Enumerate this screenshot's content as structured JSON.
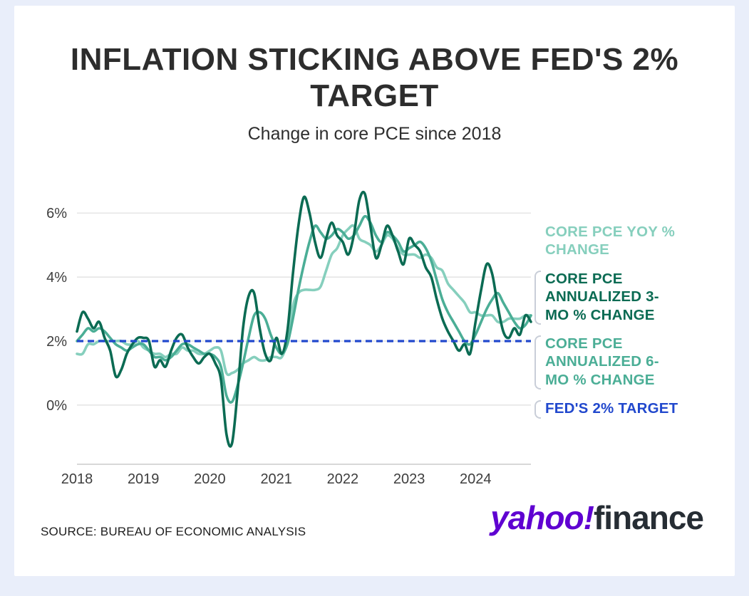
{
  "header": {
    "title": "INFLATION STICKING ABOVE FED'S 2% TARGET",
    "subtitle": "Change in core PCE since 2018"
  },
  "chart_data": {
    "type": "line",
    "frequency": "monthly",
    "x_tick_labels": [
      "2018",
      "2019",
      "2020",
      "2021",
      "2022",
      "2023",
      "2024"
    ],
    "y_ticks": [
      0,
      2,
      4,
      6
    ],
    "y_tick_labels": [
      "0%",
      "2%",
      "4%",
      "6%"
    ],
    "ylim": [
      -1.85,
      7.05
    ],
    "grid": "horizontal",
    "legend_position": "right",
    "target_line": {
      "label": "FED'S 2% TARGET",
      "value": 2,
      "color": "#2148cd",
      "style": "dashed"
    },
    "series": [
      {
        "name": "CORE PCE YOY % CHANGE",
        "color": "#86cfbd",
        "values": [
          1.6,
          1.6,
          1.9,
          1.9,
          2.0,
          2.0,
          2.0,
          2.0,
          2.0,
          1.9,
          1.9,
          2.0,
          1.8,
          1.7,
          1.6,
          1.6,
          1.5,
          1.6,
          1.6,
          1.8,
          1.7,
          1.7,
          1.6,
          1.6,
          1.7,
          1.8,
          1.7,
          1.0,
          1.0,
          1.1,
          1.3,
          1.4,
          1.5,
          1.4,
          1.4,
          1.5,
          1.5,
          1.5,
          2.0,
          3.1,
          3.5,
          3.6,
          3.6,
          3.6,
          3.7,
          4.2,
          4.7,
          4.9,
          5.3,
          5.5,
          5.6,
          5.2,
          5.1,
          5.0,
          4.8,
          5.0,
          5.3,
          5.2,
          4.9,
          4.7,
          4.7,
          4.7,
          4.6,
          4.7,
          4.6,
          4.3,
          4.2,
          3.8,
          3.6,
          3.4,
          3.2,
          2.9,
          2.9,
          2.8,
          2.8,
          2.8,
          2.6,
          2.6,
          2.7,
          2.7,
          2.7,
          2.8,
          2.8
        ]
      },
      {
        "name": "CORE PCE ANNUALIZED 6-MO % CHANGE",
        "color": "#4bae96",
        "values": [
          2.0,
          2.2,
          2.4,
          2.3,
          2.4,
          2.3,
          2.1,
          1.9,
          1.8,
          1.7,
          1.8,
          1.9,
          1.9,
          1.7,
          1.5,
          1.5,
          1.4,
          1.5,
          1.7,
          1.9,
          1.9,
          1.8,
          1.7,
          1.6,
          1.6,
          1.5,
          1.2,
          0.3,
          0.1,
          0.6,
          1.3,
          2.1,
          2.8,
          2.9,
          2.7,
          2.2,
          1.8,
          1.6,
          1.9,
          2.7,
          3.6,
          4.4,
          5.1,
          5.6,
          5.4,
          5.2,
          5.3,
          5.5,
          5.4,
          5.2,
          5.3,
          5.6,
          5.9,
          5.7,
          5.3,
          5.1,
          5.4,
          5.3,
          5.1,
          4.8,
          4.9,
          5.0,
          5.1,
          4.9,
          4.5,
          3.9,
          3.3,
          2.9,
          2.6,
          2.3,
          2.0,
          1.9,
          2.2,
          2.6,
          3.0,
          3.3,
          3.5,
          3.2,
          2.9,
          2.6,
          2.4,
          2.5,
          2.8
        ]
      },
      {
        "name": "CORE PCE ANNUALIZED 3-MO % CHANGE",
        "color": "#0b6b53",
        "values": [
          2.3,
          2.9,
          2.7,
          2.4,
          2.6,
          2.1,
          1.7,
          0.9,
          1.1,
          1.6,
          1.9,
          2.1,
          2.1,
          2.0,
          1.2,
          1.4,
          1.2,
          1.7,
          2.1,
          2.2,
          1.8,
          1.5,
          1.3,
          1.5,
          1.6,
          1.3,
          0.8,
          -0.9,
          -1.2,
          0.4,
          2.4,
          3.4,
          3.5,
          2.4,
          1.6,
          1.4,
          2.1,
          1.6,
          2.3,
          4.1,
          5.6,
          6.5,
          6.0,
          5.1,
          4.6,
          5.2,
          5.7,
          5.3,
          5.1,
          4.7,
          5.3,
          6.4,
          6.6,
          5.6,
          4.6,
          5.0,
          5.6,
          5.3,
          4.8,
          4.4,
          5.2,
          5.0,
          4.8,
          4.3,
          4.0,
          3.3,
          2.7,
          2.3,
          2.0,
          1.7,
          1.9,
          1.6,
          2.6,
          3.6,
          4.4,
          4.1,
          3.1,
          2.3,
          2.1,
          2.4,
          2.2,
          2.8,
          2.6
        ]
      }
    ]
  },
  "legend": {
    "items": [
      {
        "label": "CORE PCE YOY % CHANGE",
        "color": "#86cfbd"
      },
      {
        "label": "CORE PCE ANNUALIZED 3-MO % CHANGE",
        "color": "#0b6b53"
      },
      {
        "label": "CORE PCE ANNUALIZED 6-MO % CHANGE",
        "color": "#4bae96"
      },
      {
        "label": "FED'S 2% TARGET",
        "color": "#2148cd"
      }
    ]
  },
  "footer": {
    "source": "SOURCE: BUREAU OF ECONOMIC ANALYSIS",
    "logo_yahoo": "yahoo!",
    "logo_finance": "finance"
  }
}
